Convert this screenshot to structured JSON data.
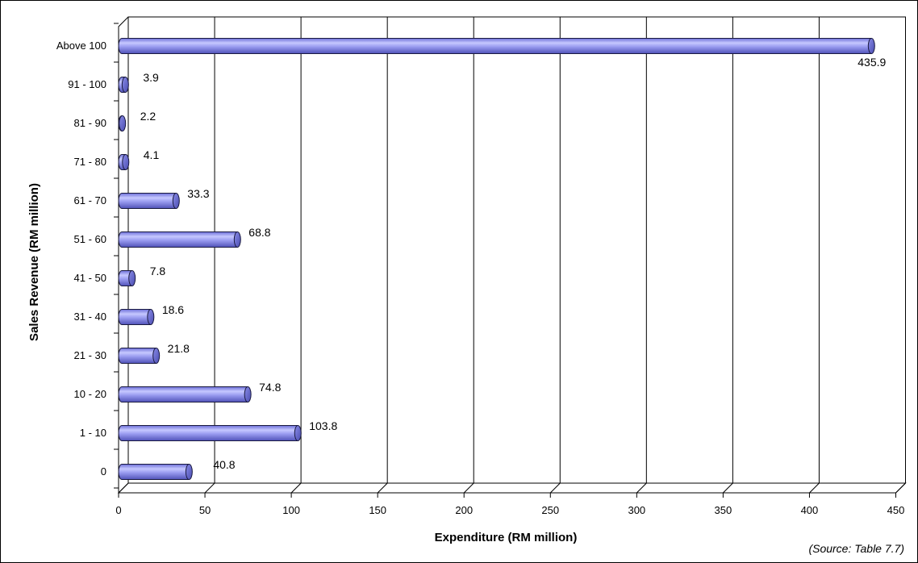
{
  "chart_data": {
    "type": "bar",
    "orientation": "horizontal",
    "style": "3d-cylinder",
    "categories": [
      "0",
      "1 - 10",
      "10 - 20",
      "21 - 30",
      "31 - 40",
      "41 - 50",
      "51 - 60",
      "61 - 70",
      "71 - 80",
      "81 - 90",
      "91 - 100",
      "Above 100"
    ],
    "values": [
      40.8,
      103.8,
      74.8,
      21.8,
      18.6,
      7.8,
      68.8,
      33.3,
      4.1,
      2.2,
      3.9,
      435.9
    ],
    "value_labels": [
      "40.8",
      "103.8",
      "74.8",
      "21.8",
      "18.6",
      "7.8",
      "68.8",
      "33.3",
      "4.1",
      "2.2",
      "3.9",
      "435.9"
    ],
    "xlabel": "Expenditure (RM million)",
    "ylabel": "Sales Revenue (RM million)",
    "xlim": [
      0,
      450
    ],
    "xticks": [
      0,
      50,
      100,
      150,
      200,
      250,
      300,
      350,
      400,
      450
    ],
    "xtick_labels": [
      "0",
      "50",
      "100",
      "150",
      "200",
      "250",
      "300",
      "350",
      "400",
      "450"
    ],
    "grid": "vertical",
    "legend": "none",
    "bar_color": "#9a9cf0",
    "bar_edge_color": "#1a1a40",
    "source_note": "(Source:  Table 7.7)"
  }
}
